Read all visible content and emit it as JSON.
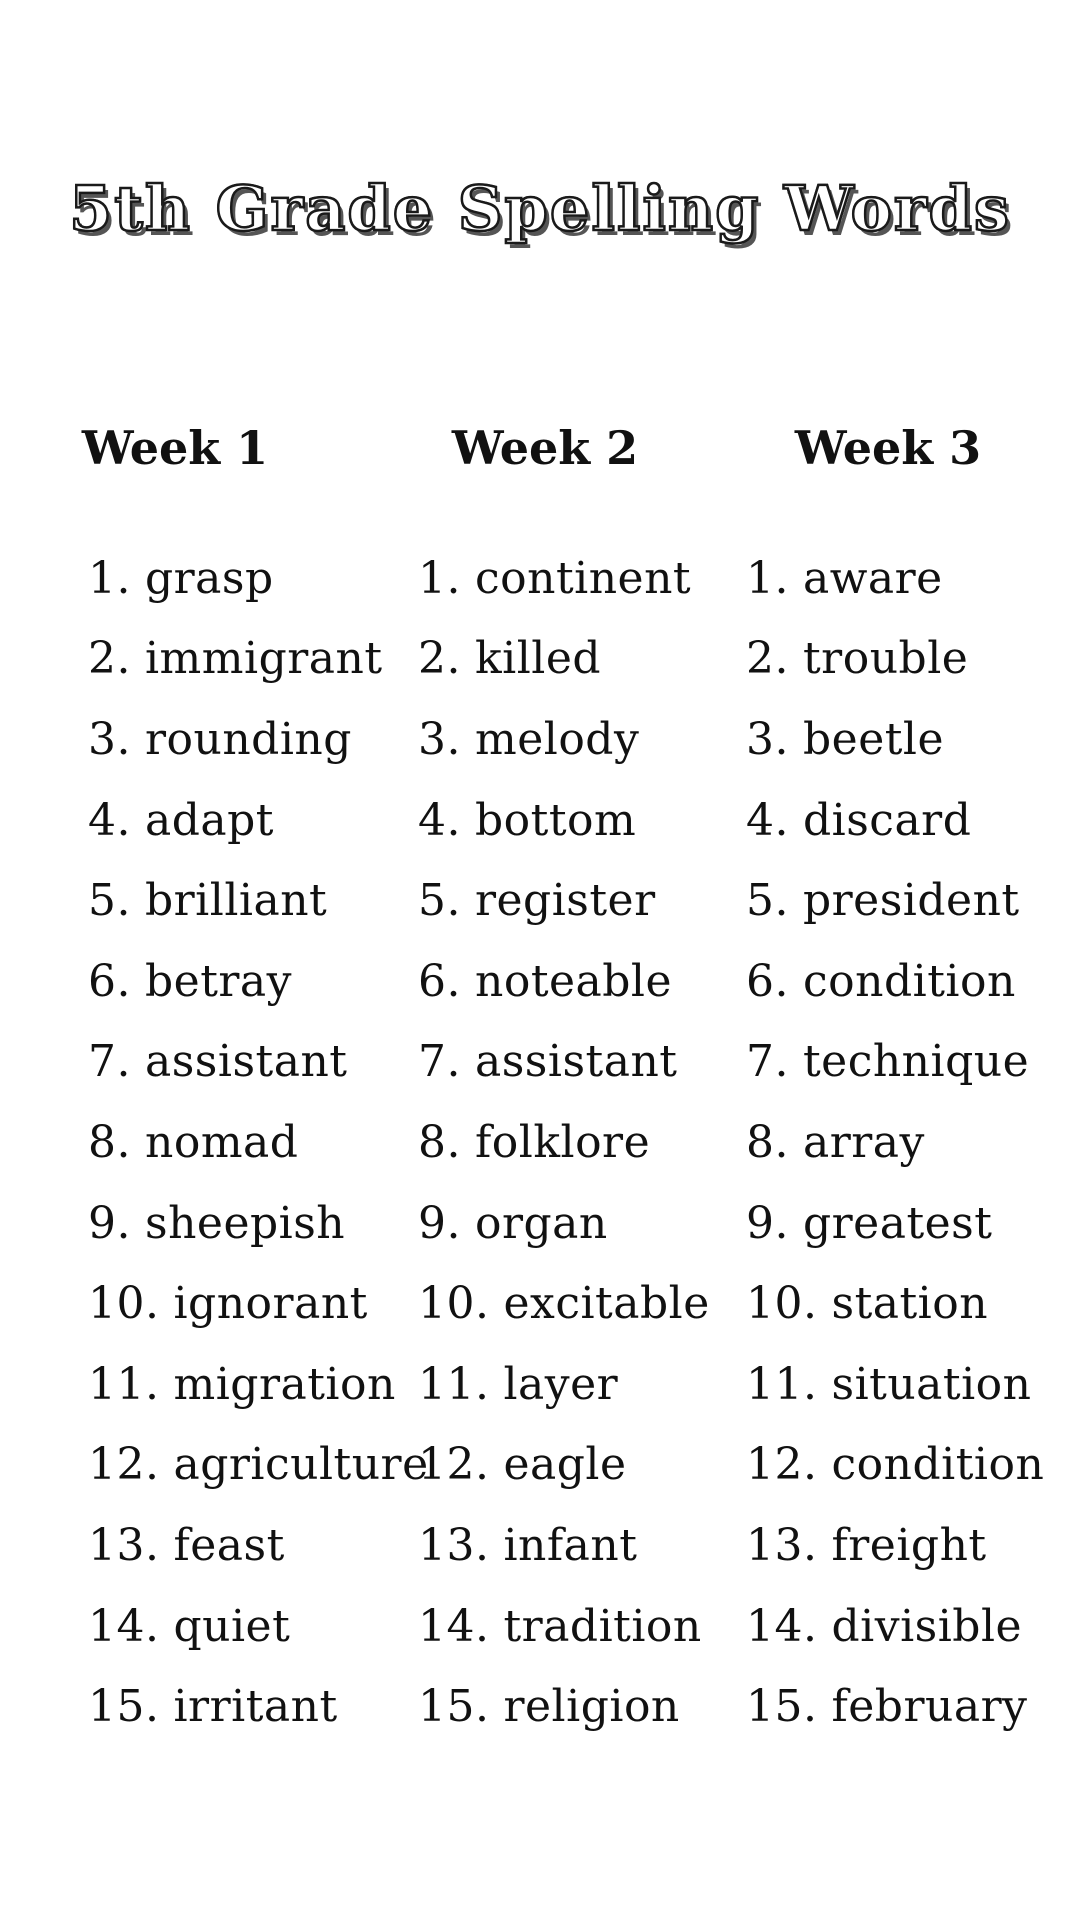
{
  "page": {
    "title": "5th Grade Spelling Words"
  },
  "columns": [
    {
      "label": "Week 1",
      "words": [
        "grasp",
        "immigrant",
        "rounding",
        "adapt",
        "brilliant",
        "betray",
        "assistant",
        "nomad",
        "sheepish",
        "ignorant",
        "migration",
        "agriculture",
        "feast",
        "quiet",
        "irritant"
      ]
    },
    {
      "label": "Week 2",
      "words": [
        "continent",
        "killed",
        "melody",
        "bottom",
        "register",
        "noteable",
        "assistant",
        "folklore",
        "organ",
        "excitable",
        "layer",
        "eagle",
        "infant",
        "tradition",
        "religion"
      ]
    },
    {
      "label": "Week 3",
      "words": [
        "aware",
        "trouble",
        "beetle",
        "discard",
        "president",
        "condition",
        "technique",
        "array",
        "greatest",
        "station",
        "situation",
        "condition",
        "freight",
        "divisible",
        "february"
      ]
    }
  ],
  "colors": {
    "background": "#ffffff",
    "text": "#111111",
    "title-fill": "#ffffff",
    "title-outline": "#1a1a1a",
    "title-shadow": "#555555"
  }
}
